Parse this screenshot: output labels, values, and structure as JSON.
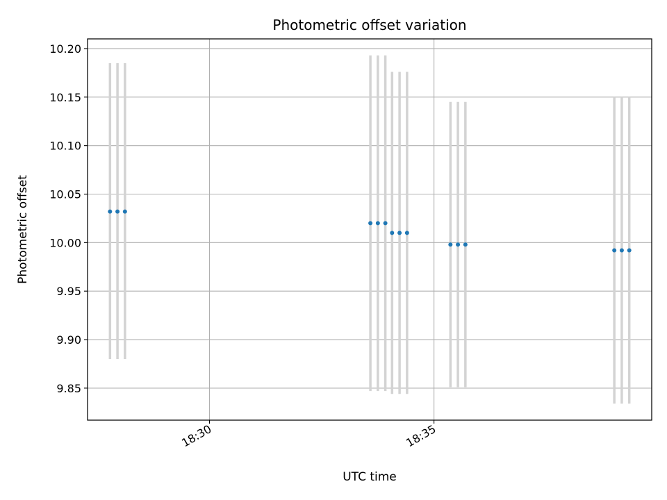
{
  "chart_data": {
    "type": "scatter",
    "title": "Photometric offset variation",
    "xlabel": "UTC time",
    "ylabel": "Photometric offset",
    "xlim": [
      "18:27:17",
      "18:39:51"
    ],
    "ylim": [
      9.817,
      10.21
    ],
    "x_ticks": [
      {
        "time": "18:30:00",
        "label": "18:30"
      },
      {
        "time": "18:35:00",
        "label": "18:35"
      }
    ],
    "y_ticks": [
      {
        "value": 9.85,
        "label": "9.85"
      },
      {
        "value": 9.9,
        "label": "9.90"
      },
      {
        "value": 9.95,
        "label": "9.95"
      },
      {
        "value": 10.0,
        "label": "10.00"
      },
      {
        "value": 10.05,
        "label": "10.05"
      },
      {
        "value": 10.1,
        "label": "10.10"
      },
      {
        "value": 10.15,
        "label": "10.15"
      },
      {
        "value": 10.2,
        "label": "10.20"
      }
    ],
    "grid": true,
    "legend": "none",
    "colors": {
      "marker": "#1f77b4",
      "errorbar": "#d3d3d3",
      "grid": "#b0b0b0",
      "axes": "#000000"
    },
    "points": [
      {
        "time": "18:27:47",
        "y": 10.032,
        "ylow": 9.88,
        "yhigh": 10.185
      },
      {
        "time": "18:27:57",
        "y": 10.032,
        "ylow": 9.88,
        "yhigh": 10.185
      },
      {
        "time": "18:28:07",
        "y": 10.032,
        "ylow": 9.88,
        "yhigh": 10.185
      },
      {
        "time": "18:33:35",
        "y": 10.02,
        "ylow": 9.847,
        "yhigh": 10.193
      },
      {
        "time": "18:33:45",
        "y": 10.02,
        "ylow": 9.847,
        "yhigh": 10.193
      },
      {
        "time": "18:33:55",
        "y": 10.02,
        "ylow": 9.847,
        "yhigh": 10.193
      },
      {
        "time": "18:34:04",
        "y": 10.01,
        "ylow": 9.844,
        "yhigh": 10.176
      },
      {
        "time": "18:34:14",
        "y": 10.01,
        "ylow": 9.844,
        "yhigh": 10.176
      },
      {
        "time": "18:34:24",
        "y": 10.01,
        "ylow": 9.844,
        "yhigh": 10.176
      },
      {
        "time": "18:35:22",
        "y": 9.998,
        "ylow": 9.851,
        "yhigh": 10.145
      },
      {
        "time": "18:35:32",
        "y": 9.998,
        "ylow": 9.851,
        "yhigh": 10.145
      },
      {
        "time": "18:35:42",
        "y": 9.998,
        "ylow": 9.851,
        "yhigh": 10.145
      },
      {
        "time": "18:39:01",
        "y": 9.992,
        "ylow": 9.834,
        "yhigh": 10.15
      },
      {
        "time": "18:39:11",
        "y": 9.992,
        "ylow": 9.834,
        "yhigh": 10.15
      },
      {
        "time": "18:39:21",
        "y": 9.992,
        "ylow": 9.834,
        "yhigh": 10.15
      }
    ]
  }
}
